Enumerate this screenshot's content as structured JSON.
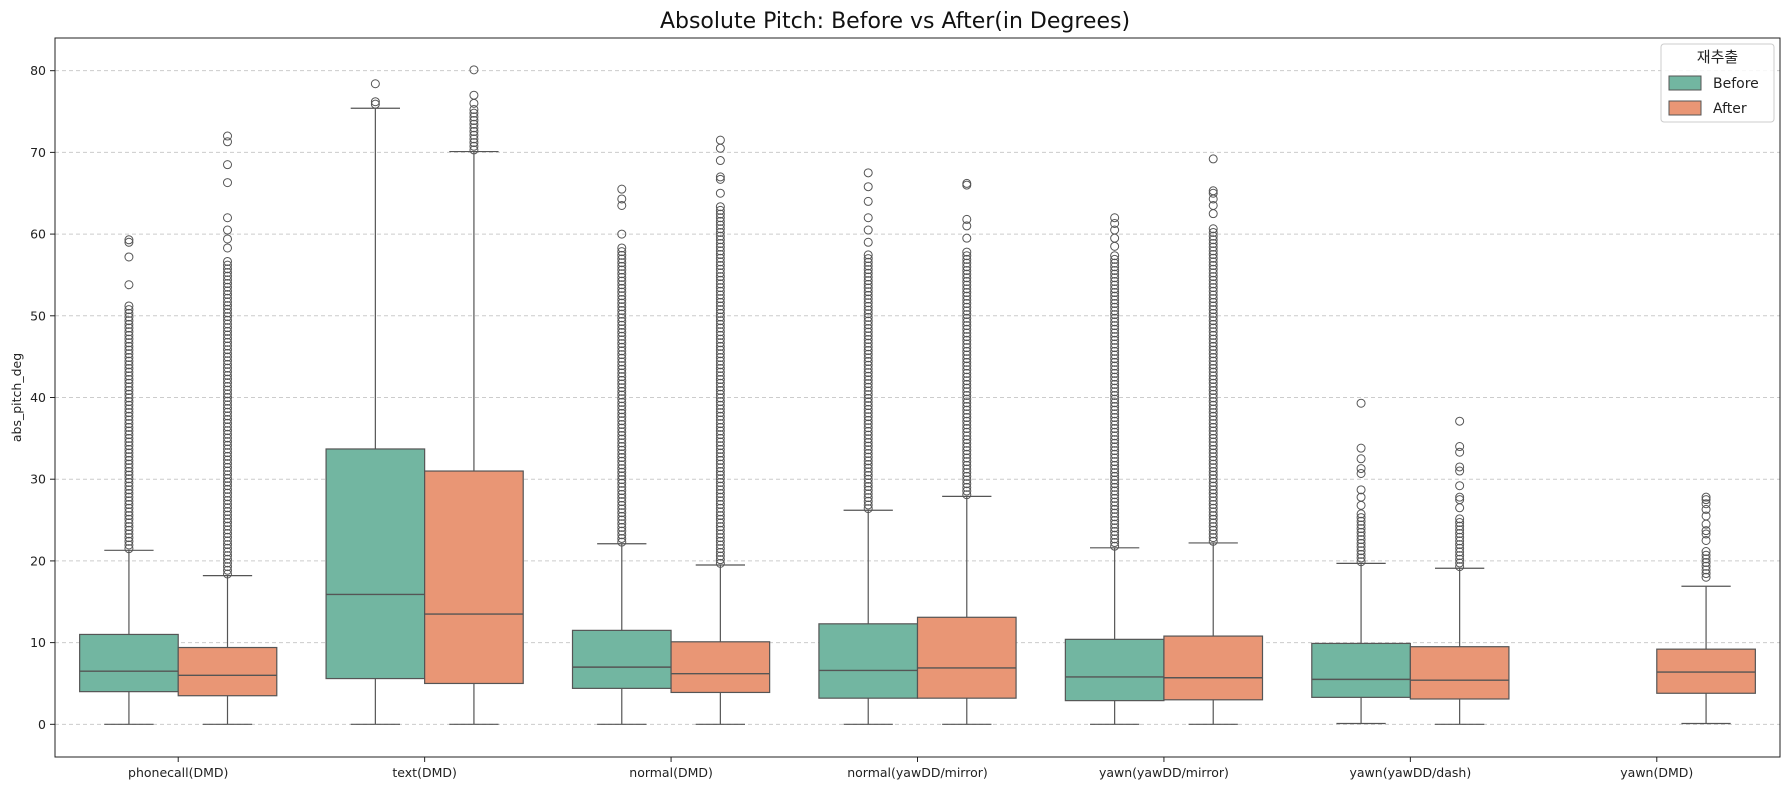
{
  "chart_data": {
    "type": "box",
    "title": "Absolute Pitch: Before vs After(in Degrees)",
    "xlabel": "",
    "ylabel": "abs_pitch_deg",
    "ylim": [
      -4,
      84
    ],
    "yticks": [
      0,
      10,
      20,
      30,
      40,
      50,
      60,
      70,
      80
    ],
    "grid": "y-dashed",
    "categories": [
      "phonecall(DMD)",
      "text(DMD)",
      "normal(DMD)",
      "normal(yawDD/mirror)",
      "yawn(yawDD/mirror)",
      "yawn(yawDD/dash)",
      "yawn(DMD)"
    ],
    "legend": {
      "title": "재추출",
      "position": "top-right",
      "entries": [
        {
          "label": "Before",
          "color": "#72b6a1"
        },
        {
          "label": "After",
          "color": "#e99675"
        }
      ]
    },
    "series": [
      {
        "name": "Before",
        "color": "#72b6a1",
        "boxes": [
          {
            "min": 0,
            "q1": 4.0,
            "median": 6.5,
            "q3": 11.0,
            "max": 21.3,
            "outlier_range": [
              21.3,
              51.5
            ],
            "outliers": [
              53.8,
              57.2,
              59.0,
              59.3
            ]
          },
          {
            "min": 0,
            "q1": 5.6,
            "median": 15.9,
            "q3": 33.7,
            "max": 75.4,
            "outlier_range": null,
            "outliers": [
              75.9,
              76.2,
              78.4
            ]
          },
          {
            "min": 0,
            "q1": 4.4,
            "median": 7.0,
            "q3": 11.5,
            "max": 22.1,
            "outlier_range": [
              22.1,
              58.5
            ],
            "outliers": [
              60.0,
              63.5,
              64.3,
              65.5
            ]
          },
          {
            "min": 0,
            "q1": 3.2,
            "median": 6.6,
            "q3": 12.3,
            "max": 26.2,
            "outlier_range": [
              26.2,
              57.7
            ],
            "outliers": [
              59.0,
              60.5,
              62.0,
              64.0,
              65.8,
              67.5
            ]
          },
          {
            "min": 0,
            "q1": 2.9,
            "median": 5.8,
            "q3": 10.4,
            "max": 21.6,
            "outlier_range": [
              21.6,
              57.5
            ],
            "outliers": [
              58.5,
              59.5,
              60.5,
              61.3,
              62.0
            ]
          },
          {
            "min": 0.1,
            "q1": 3.3,
            "median": 5.5,
            "q3": 9.9,
            "max": 19.7,
            "outlier_range": [
              19.7,
              26.0
            ],
            "outliers": [
              26.8,
              27.8,
              28.7,
              30.7,
              31.3,
              32.5,
              33.8,
              39.3
            ]
          },
          null
        ]
      },
      {
        "name": "After",
        "color": "#e99675",
        "boxes": [
          {
            "min": 0,
            "q1": 3.5,
            "median": 6.0,
            "q3": 9.4,
            "max": 18.2,
            "outlier_range": [
              18.2,
              57.0
            ],
            "outliers": [
              58.3,
              59.4,
              60.5,
              62.0,
              66.3,
              68.5,
              71.3,
              72.0
            ]
          },
          {
            "min": 0,
            "q1": 5.0,
            "median": 13.5,
            "q3": 31.0,
            "max": 70.1,
            "outlier_range": [
              70.1,
              75.5
            ],
            "outliers": [
              76.0,
              77.0,
              80.1
            ]
          },
          {
            "min": 0,
            "q1": 3.9,
            "median": 6.2,
            "q3": 10.1,
            "max": 19.5,
            "outlier_range": [
              19.5,
              63.5
            ],
            "outliers": [
              65.0,
              66.7,
              67.0,
              69.0,
              70.5,
              71.5
            ]
          },
          {
            "min": 0,
            "q1": 3.2,
            "median": 6.9,
            "q3": 13.1,
            "max": 27.9,
            "outlier_range": [
              27.9,
              58.0
            ],
            "outliers": [
              59.5,
              61.0,
              61.8,
              66.0,
              66.2
            ]
          },
          {
            "min": 0,
            "q1": 3.0,
            "median": 5.7,
            "q3": 10.8,
            "max": 22.2,
            "outlier_range": [
              22.2,
              61.0
            ],
            "outliers": [
              62.5,
              63.5,
              64.3,
              65.0,
              65.3,
              69.2
            ]
          },
          {
            "min": 0,
            "q1": 3.1,
            "median": 5.4,
            "q3": 9.5,
            "max": 19.1,
            "outlier_range": [
              19.1,
              25.5
            ],
            "outliers": [
              26.5,
              27.5,
              27.8,
              29.2,
              31.0,
              31.5,
              33.3,
              34.0,
              37.1
            ]
          },
          {
            "min": 0.1,
            "q1": 3.8,
            "median": 6.4,
            "q3": 9.2,
            "max": 16.9,
            "outlier_range": [
              17.8,
              21.5
            ],
            "outliers": [
              22.5,
              23.3,
              23.7,
              24.5,
              25.5,
              26.3,
              27.0,
              27.5,
              27.8
            ]
          }
        ]
      }
    ]
  }
}
